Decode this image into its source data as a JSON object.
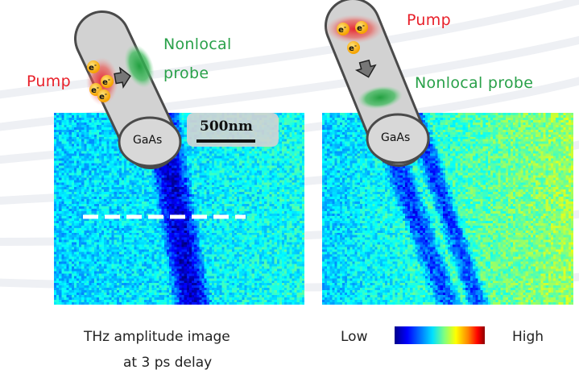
{
  "labels": {
    "pump_left": "Pump",
    "probe_left_line1": "Nonlocal",
    "probe_left_line2": "probe",
    "pump_right": "Pump",
    "probe_right": "Nonlocal probe",
    "gaas_left": "GaAs",
    "gaas_right": "GaAs",
    "electron": "e",
    "electron_sup": "-",
    "scale_bar": "500nm"
  },
  "caption": {
    "line1": "THz amplitude image",
    "line2": "at 3 ps delay"
  },
  "colorbar": {
    "low": "Low",
    "high": "High"
  },
  "colors": {
    "pump": "#e8202a",
    "probe": "#2aa14a",
    "nanowire": "#d2d2d2",
    "background_scan": "#33b0e8",
    "trace_dark": "#0a20c0"
  }
}
